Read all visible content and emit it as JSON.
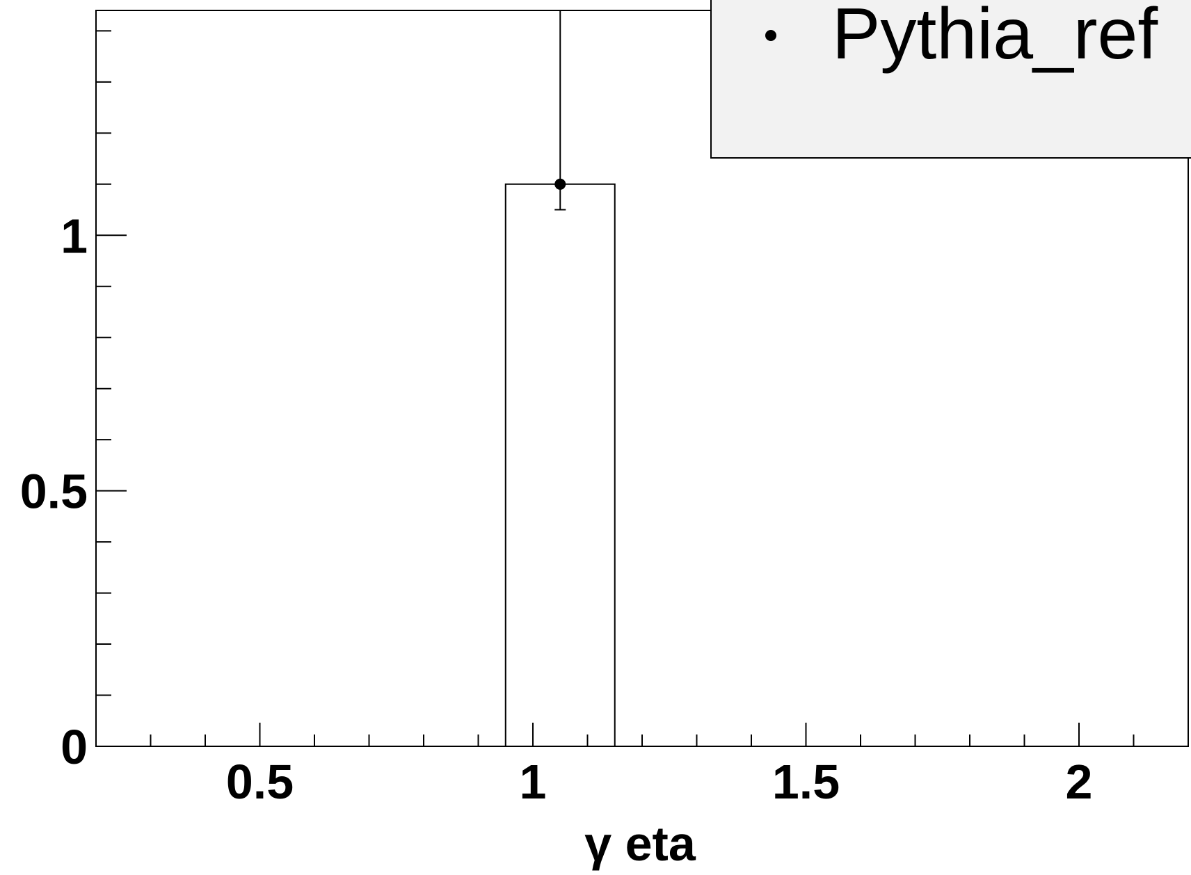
{
  "chart_data": {
    "type": "bar",
    "xlabel": "γ eta",
    "ylabel": "",
    "xlim": [
      0.2,
      2.2
    ],
    "ylim": [
      0,
      1.44
    ],
    "x_major_ticks": [
      0.5,
      1,
      1.5,
      2
    ],
    "x_tick_labels": [
      "0.5",
      "1",
      "1.5",
      "2"
    ],
    "y_major_ticks": [
      0,
      0.5,
      1
    ],
    "y_tick_labels": [
      "0",
      "0.5",
      "1"
    ],
    "grid": false,
    "legend_position": "top-right",
    "series": [
      {
        "name": "Pythia_ref",
        "marker": "point",
        "bins": [
          {
            "x_low": 0.95,
            "x_high": 1.15,
            "x_center": 1.05,
            "value": 1.1,
            "err_low": 1.05,
            "err_high": 1.44
          }
        ]
      }
    ],
    "colors": {
      "line": "#000000",
      "legend_fill": "#f2f2f2",
      "background": "#ffffff"
    }
  }
}
